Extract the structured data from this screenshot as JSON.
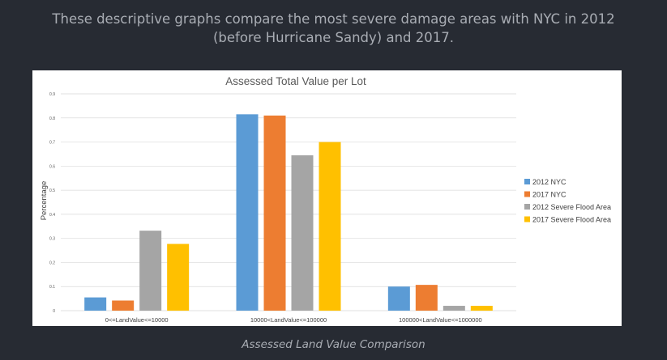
{
  "page": {
    "heading_line1": "These descriptive graphs compare the most severe damage areas with NYC in 2012",
    "heading_line2": "(before Hurricane Sandy) and 2017.",
    "caption": "Assessed Land Value Comparison"
  },
  "chart_data": {
    "type": "bar",
    "title": "Assessed Total Value per Lot",
    "xlabel": "",
    "ylabel": "Percentage",
    "ylim": [
      0,
      0.9
    ],
    "yticks": [
      0,
      0.1,
      0.2,
      0.3,
      0.4,
      0.5,
      0.6,
      0.7,
      0.8,
      0.9
    ],
    "ytick_labels": [
      "0",
      "0.1",
      "0.2",
      "0.3",
      "0.4",
      "0.5",
      "0.6",
      "0.7",
      "0.8",
      "0.9"
    ],
    "grid": true,
    "legend_position": "right",
    "categories": [
      "0<=LandValue<=10000",
      "10000<LandValue<=100000",
      "100000<LandValue<=1000000"
    ],
    "series": [
      {
        "name": "2012 NYC",
        "color": "#5b9bd5",
        "values": [
          0.055,
          0.815,
          0.1
        ]
      },
      {
        "name": "2017 NYC",
        "color": "#ed7d31",
        "values": [
          0.042,
          0.81,
          0.107
        ]
      },
      {
        "name": "2012 Severe Flood Area",
        "color": "#a5a5a5",
        "values": [
          0.332,
          0.645,
          0.02
        ]
      },
      {
        "name": "2017 Severe Flood Area",
        "color": "#ffc000",
        "values": [
          0.277,
          0.7,
          0.02
        ]
      }
    ]
  }
}
